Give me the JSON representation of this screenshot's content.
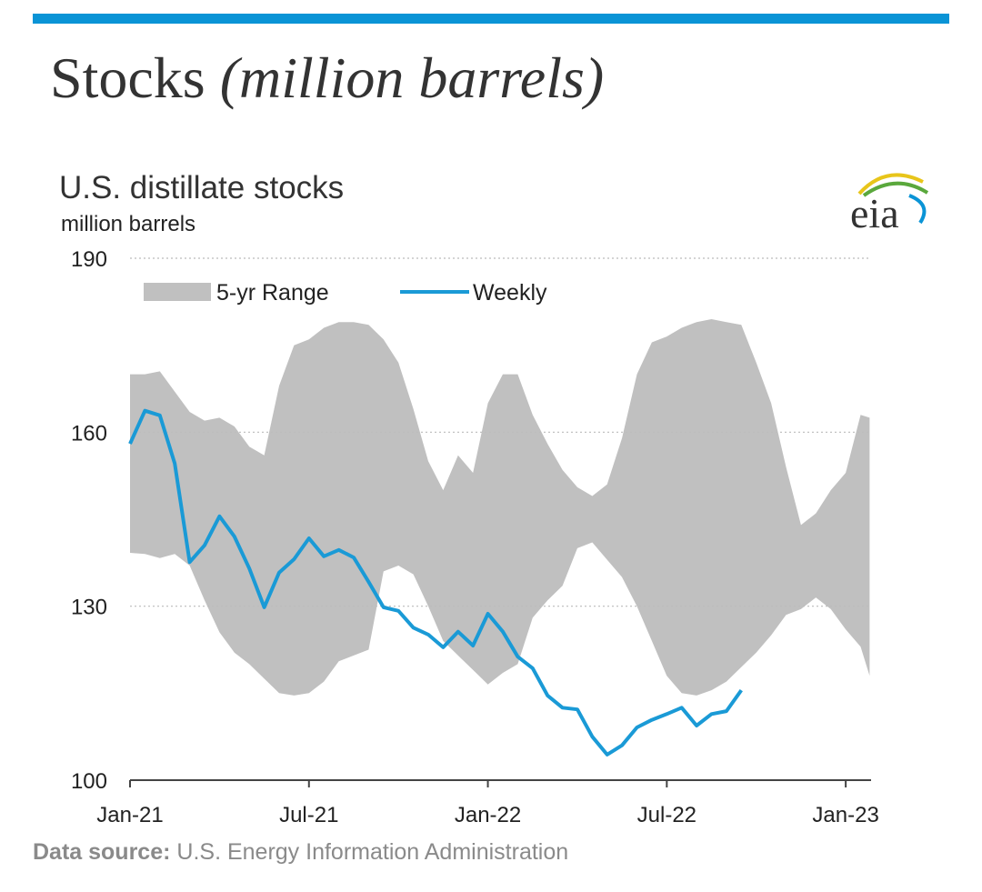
{
  "header": {
    "title": "Stocks",
    "title_italic": "(million barrels)"
  },
  "chart_data": {
    "type": "line",
    "title": "U.S. distillate stocks",
    "subtitle": "million barrels",
    "logo": "eia",
    "source_label": "Data source:",
    "source": "U.S. Energy Information Administration",
    "xlim": [
      0,
      24.85
    ],
    "xticks": [
      {
        "value": 0,
        "label": "Jan-21"
      },
      {
        "value": 6,
        "label": "Jul-21"
      },
      {
        "value": 12,
        "label": "Jan-22"
      },
      {
        "value": 18,
        "label": "Jul-22"
      },
      {
        "value": 24,
        "label": "Jan-23"
      }
    ],
    "ylim": [
      100,
      190
    ],
    "yticks": [
      100,
      130,
      160,
      190
    ],
    "grid": true,
    "x": [
      0,
      0.5,
      1,
      1.5,
      2,
      2.5,
      3,
      3.5,
      4,
      4.5,
      5,
      5.5,
      6,
      6.5,
      7,
      7.5,
      8,
      8.5,
      9,
      9.5,
      10,
      10.5,
      11,
      11.5,
      12,
      12.5,
      13,
      13.5,
      14,
      14.5,
      15,
      15.5,
      16,
      16.5,
      17,
      17.5,
      18,
      18.5,
      19,
      19.5,
      20,
      20.5,
      21,
      21.5,
      22,
      22.5,
      23,
      23.5,
      24,
      24.5,
      24.8
    ],
    "series": [
      {
        "name": "5-yr Range",
        "type": "range",
        "color": "#c0c0c0",
        "upper": [
          170,
          170,
          170.5,
          167,
          163.5,
          162,
          162.5,
          161,
          157.5,
          156,
          168,
          175,
          176,
          178,
          179,
          179,
          178.5,
          176,
          172,
          164,
          155,
          150,
          156,
          153,
          165,
          170,
          170,
          163,
          158,
          153.5,
          150.5,
          149,
          151,
          159,
          170,
          175.5,
          176.5,
          178,
          179,
          179.5,
          179,
          178.5,
          172,
          165,
          154,
          144,
          146,
          150,
          153,
          163,
          162.5
        ],
        "lower": [
          139.2,
          139,
          138.3,
          139,
          137,
          131,
          125.5,
          122,
          120,
          117.5,
          115,
          114.6,
          115,
          117,
          120.5,
          121.5,
          122.5,
          136,
          137,
          135.5,
          130,
          124,
          121.5,
          119,
          116.5,
          118.5,
          120,
          128,
          131,
          133.5,
          140,
          141,
          138,
          135,
          130,
          124,
          118,
          115,
          114.6,
          115.5,
          117,
          119.5,
          122,
          125,
          128.5,
          129.5,
          131.5,
          129.5,
          126,
          123,
          118
        ]
      },
      {
        "name": "Weekly",
        "type": "line",
        "color": "#1a9ad6",
        "values": [
          158,
          163.7,
          162.9,
          154.6,
          137.6,
          140.5,
          145.5,
          142,
          136.5,
          129.8,
          135.8,
          138.1,
          141.7,
          138.6,
          139.7,
          138.4,
          134.2,
          129.8,
          129.2,
          126.3,
          125.1,
          122.9,
          125.6,
          123.2,
          128.7,
          125.6,
          121.3,
          119.3,
          114.6,
          112.5,
          112.2,
          107.5,
          104.4,
          106,
          109.1,
          110.4,
          111.4,
          112.5,
          109.4,
          111.4,
          111.9,
          115.5,
          null,
          null,
          null,
          null,
          null,
          null,
          null,
          null,
          null
        ]
      }
    ]
  }
}
